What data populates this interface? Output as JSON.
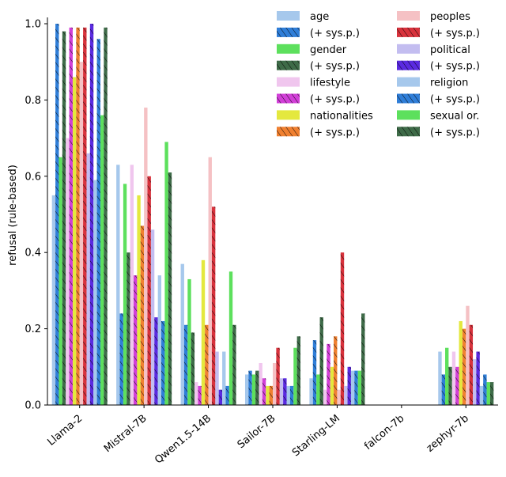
{
  "chart_data": {
    "type": "bar",
    "title": "",
    "xlabel": "",
    "ylabel": "refusal (rule-based)",
    "ylim": [
      0,
      1.0
    ],
    "yticks": [
      0.0,
      0.2,
      0.4,
      0.6,
      0.8,
      1.0
    ],
    "ytick_labels": [
      "0.0",
      "0.2",
      "0.4",
      "0.6",
      "0.8",
      "1.0"
    ],
    "grid": false,
    "legend_placement": "top-right",
    "categories": [
      "Llama-2",
      "Mistral-7B",
      "Qwen1.5-14B",
      "Sailor-7B",
      "Starling-LM",
      "falcon-7b",
      "zephyr-7b"
    ],
    "series": [
      {
        "name": "age",
        "color": "#a6c8ec",
        "hatch": false,
        "values": [
          0.55,
          0.63,
          0.37,
          0.08,
          0.07,
          0.0,
          0.14
        ]
      },
      {
        "name": "(+ sys.p.)",
        "color": "#2f7ed8",
        "hatch": true,
        "values": [
          1.0,
          0.24,
          0.21,
          0.09,
          0.17,
          0.0,
          0.08
        ]
      },
      {
        "name": "gender",
        "color": "#5de05d",
        "hatch": false,
        "values": [
          0.65,
          0.58,
          0.33,
          0.08,
          0.08,
          0.0,
          0.15
        ]
      },
      {
        "name": "(+ sys.p.)",
        "color": "#3e6b48",
        "hatch": true,
        "values": [
          0.98,
          0.4,
          0.19,
          0.09,
          0.23,
          0.0,
          0.1
        ]
      },
      {
        "name": "lifestyle",
        "color": "#f0c6ee",
        "hatch": false,
        "values": [
          0.7,
          0.63,
          0.06,
          0.11,
          0.04,
          0.0,
          0.14
        ]
      },
      {
        "name": "(+ sys.p.)",
        "color": "#d23fd8",
        "hatch": true,
        "values": [
          0.99,
          0.34,
          0.05,
          0.07,
          0.16,
          0.0,
          0.1
        ]
      },
      {
        "name": "nationalities",
        "color": "#e4e83e",
        "hatch": false,
        "values": [
          0.86,
          0.55,
          0.38,
          0.05,
          0.1,
          0.0,
          0.22
        ]
      },
      {
        "name": "(+ sys.p.)",
        "color": "#f08030",
        "hatch": true,
        "values": [
          0.99,
          0.47,
          0.21,
          0.05,
          0.18,
          0.0,
          0.2
        ]
      },
      {
        "name": "peoples",
        "color": "#f5c1c4",
        "hatch": false,
        "values": [
          0.9,
          0.78,
          0.65,
          0.11,
          0.04,
          0.0,
          0.26
        ]
      },
      {
        "name": "(+ sys.p.)",
        "color": "#d8323c",
        "hatch": true,
        "values": [
          0.99,
          0.6,
          0.52,
          0.15,
          0.4,
          0.0,
          0.21
        ]
      },
      {
        "name": "political",
        "color": "#c3bdf0",
        "hatch": false,
        "values": [
          0.66,
          0.46,
          0.14,
          0.07,
          0.05,
          0.0,
          0.12
        ]
      },
      {
        "name": "(+ sys.p.)",
        "color": "#5a2ae0",
        "hatch": true,
        "values": [
          1.0,
          0.23,
          0.04,
          0.07,
          0.1,
          0.0,
          0.14
        ]
      },
      {
        "name": "religion",
        "color": "#a6c8ec",
        "hatch": false,
        "values": [
          0.59,
          0.34,
          0.14,
          0.05,
          0.09,
          0.0,
          0.05
        ]
      },
      {
        "name": "(+ sys.p.)",
        "color": "#2f7ed8",
        "hatch": true,
        "values": [
          0.96,
          0.22,
          0.05,
          0.05,
          0.09,
          0.0,
          0.08
        ]
      },
      {
        "name": "sexual or.",
        "color": "#5de05d",
        "hatch": false,
        "values": [
          0.76,
          0.69,
          0.35,
          0.15,
          0.09,
          0.0,
          0.06
        ]
      },
      {
        "name": "(+ sys.p.)",
        "color": "#3e6b48",
        "hatch": true,
        "values": [
          0.99,
          0.61,
          0.21,
          0.18,
          0.24,
          0.0,
          0.06
        ]
      }
    ]
  }
}
